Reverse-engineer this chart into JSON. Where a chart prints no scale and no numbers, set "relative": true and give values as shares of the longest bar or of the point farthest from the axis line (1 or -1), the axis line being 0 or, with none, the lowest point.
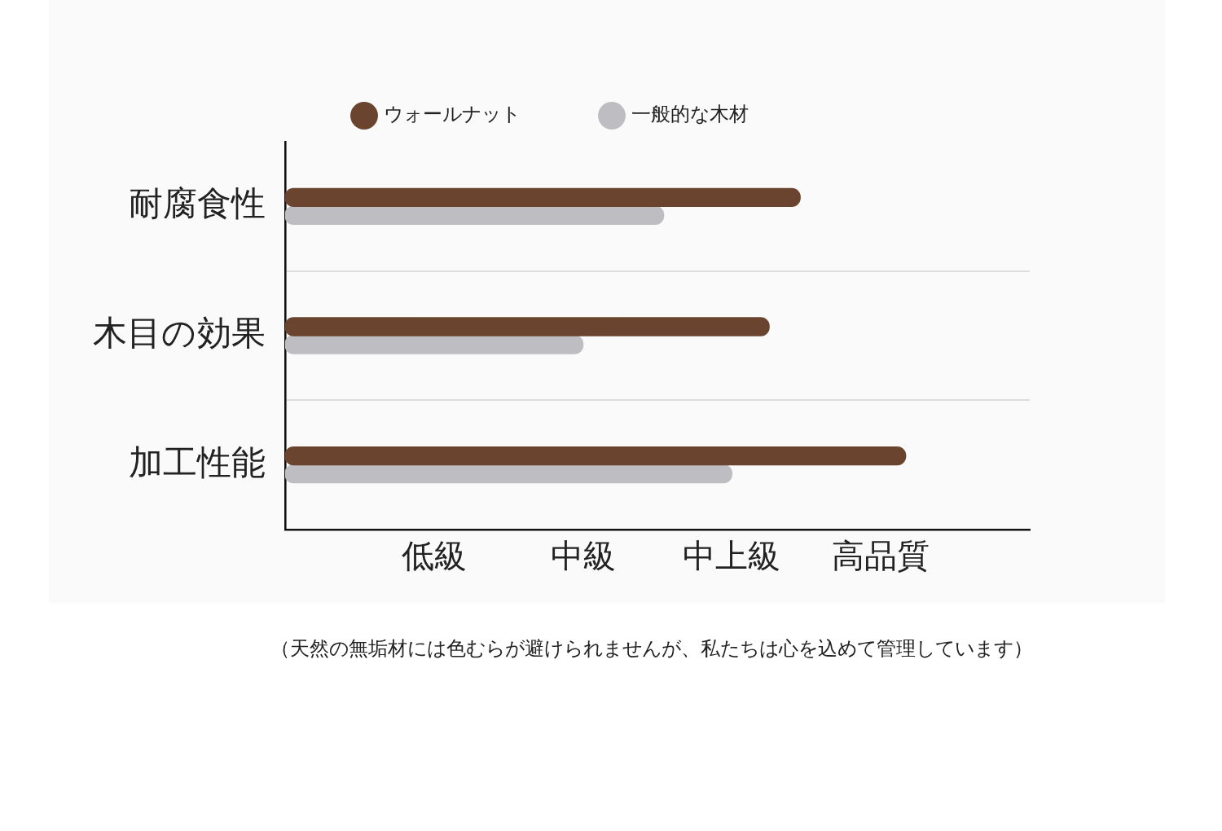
{
  "chart_data": {
    "type": "bar",
    "orientation": "horizontal",
    "relative": true,
    "categories": [
      "耐腐食性",
      "木目の効果",
      "加工性能"
    ],
    "series": [
      {
        "name": "ウォールナット",
        "color": "#6b4430",
        "values": [
          0.83,
          0.78,
          1
        ]
      },
      {
        "name": "一般的な木材",
        "color": "#bebdc1",
        "values": [
          0.61,
          0.48,
          0.72
        ]
      }
    ],
    "grid": true,
    "legend": "top",
    "marker": "circle",
    "annotations": [
      "低級",
      "中級",
      "中上級",
      "高品質",
      "（天然の無垢材には色むらが避けられませんが、私たちは心を込めて管理しています）"
    ]
  }
}
